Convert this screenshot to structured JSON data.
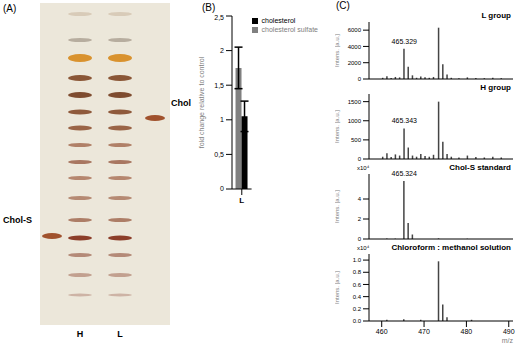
{
  "panel_labels": [
    "(A)",
    "(B)",
    "(C)"
  ],
  "tlc_plate": {
    "lanes": [
      "H",
      "L"
    ],
    "standards": [
      "Chol-S",
      "Chol"
    ]
  },
  "chart_data": [
    {
      "type": "bar",
      "ylabel": "fold change relative to control",
      "categories": [
        "L"
      ],
      "series": [
        {
          "name": "cholesterol sulfate",
          "color": "#808080",
          "values": [
            1.75
          ],
          "errors": [
            0.3
          ]
        },
        {
          "name": "cholesterol",
          "color": "#000000",
          "values": [
            1.05
          ],
          "errors": [
            0.22
          ]
        }
      ],
      "ylim": [
        0,
        2.5
      ],
      "yticks": [
        0,
        {
          "value": 0.5,
          "label": "0,5"
        },
        1,
        {
          "value": 1.5,
          "label": "1,5"
        },
        2,
        {
          "value": 2.5,
          "label": "2,5"
        }
      ],
      "legend": "top"
    },
    {
      "type": "spectrum",
      "title": "L group",
      "ylabel": "Intens. [a.u.]",
      "x": [
        460.3,
        461.3,
        462.3,
        463.3,
        464.3,
        465.329,
        466.33,
        467.33,
        468.3,
        469.3,
        470.3,
        471.3,
        472.3,
        473.5,
        474.5,
        475.5,
        476.5,
        478.3,
        480.3,
        482.3,
        484.3,
        486.3,
        488.3
      ],
      "values": [
        150,
        350,
        120,
        250,
        200,
        3700,
        1500,
        450,
        150,
        300,
        200,
        150,
        250,
        6300,
        1800,
        550,
        150,
        100,
        200,
        120,
        100,
        150,
        100
      ],
      "annotations": [
        {
          "x": 465.329,
          "label": "465.329"
        }
      ],
      "xlim": [
        457,
        491
      ],
      "xticks": [
        460,
        470,
        480,
        490
      ],
      "ylim": [
        0,
        7000
      ],
      "yticks": [
        0,
        2000,
        4000,
        6000
      ],
      "tick_labels": "y"
    },
    {
      "type": "spectrum",
      "title": "H group",
      "ylabel": "Intens. [a.u.]",
      "x": [
        460.3,
        461.3,
        462.3,
        463.3,
        464.3,
        465.343,
        466.34,
        467.34,
        468.3,
        469.3,
        470.3,
        471.3,
        472.3,
        473.5,
        474.5,
        475.5,
        476.5,
        478.3,
        480.3,
        482.3,
        484.3,
        486.3,
        488.3
      ],
      "values": [
        60,
        150,
        50,
        120,
        90,
        800,
        300,
        90,
        60,
        130,
        80,
        60,
        110,
        1500,
        450,
        130,
        60,
        40,
        90,
        50,
        40,
        60,
        40
      ],
      "annotations": [
        {
          "x": 465.343,
          "label": "465.343"
        }
      ],
      "xlim": [
        457,
        491
      ],
      "xticks": [
        460,
        470,
        480,
        490
      ],
      "ylim": [
        0,
        1700
      ],
      "yticks": [
        0,
        500,
        1000,
        1500
      ],
      "tick_labels": "y"
    },
    {
      "type": "spectrum",
      "title": "Chol-S standard",
      "ylabel": "Intens. [a.u.]",
      "multiplier": "x10⁴",
      "x": [
        461.3,
        463.3,
        465.324,
        466.33,
        467.33,
        473.5,
        480.3
      ],
      "values": [
        0.05,
        0.04,
        5.8,
        1.6,
        0.45,
        0.06,
        0.03
      ],
      "annotations": [
        {
          "x": 465.324,
          "label": "465.324"
        }
      ],
      "xlim": [
        457,
        491
      ],
      "xticks": [
        460,
        470,
        480,
        490
      ],
      "ylim": [
        0,
        6.5
      ],
      "yticks": [
        0,
        2,
        4
      ],
      "tick_labels": "y"
    },
    {
      "type": "spectrum",
      "title": "Chloroform : methanol solution",
      "ylabel": "Intens. [a.u.]",
      "xlabel": "m/z",
      "multiplier": "x10⁴",
      "x": [
        461.3,
        465.3,
        469.3,
        473.5,
        474.5,
        475.5,
        481.3
      ],
      "values": [
        0.02,
        0.03,
        0.02,
        0.98,
        0.27,
        0.06,
        0.02
      ],
      "xlim": [
        457,
        491
      ],
      "xticks": [
        460,
        470,
        480,
        490
      ],
      "ylim": [
        0,
        1.1
      ],
      "yticks": [
        {
          "value": 0,
          "label": "0.0"
        },
        {
          "value": 0.2,
          "label": "0.2"
        },
        {
          "value": 0.4,
          "label": "0.4"
        },
        {
          "value": 0.6,
          "label": "0.6"
        },
        {
          "value": 0.8,
          "label": "0.8"
        },
        {
          "value": 1,
          "label": "1.0"
        }
      ]
    }
  ]
}
